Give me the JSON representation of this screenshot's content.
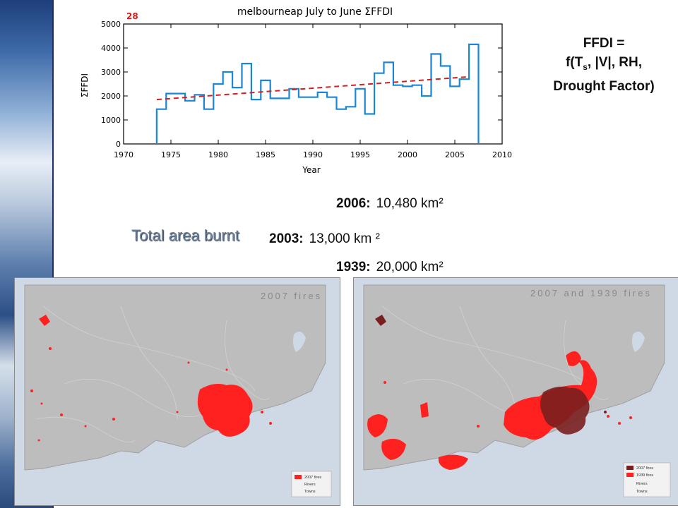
{
  "chart_data": {
    "type": "line",
    "title": "melbourneap July to June ΣFFDI",
    "corner_label": "28",
    "xlabel": "Year",
    "ylabel": "ΣFFDI",
    "xlim": [
      1970,
      2010
    ],
    "ylim": [
      0,
      5000
    ],
    "x_ticks": [
      1970,
      1975,
      1980,
      1985,
      1990,
      1995,
      2000,
      2005,
      2010
    ],
    "y_ticks": [
      0,
      1000,
      2000,
      3000,
      4000,
      5000
    ],
    "series": [
      {
        "style": "step",
        "color": "#1a86d6",
        "x": [
          1973.5,
          1974.5,
          1975.5,
          1976.5,
          1977.5,
          1978.5,
          1979.5,
          1980.5,
          1981.5,
          1982.5,
          1983.5,
          1984.5,
          1985.5,
          1986.5,
          1987.5,
          1988.5,
          1989.5,
          1990.5,
          1991.5,
          1992.5,
          1993.5,
          1994.5,
          1995.5,
          1996.5,
          1997.5,
          1998.5,
          1999.5,
          2000.5,
          2001.5,
          2002.5,
          2003.5,
          2004.5,
          2005.5,
          2006.5
        ],
        "values": [
          1450,
          2100,
          2100,
          1800,
          2050,
          1450,
          2500,
          3000,
          2350,
          3350,
          1850,
          2650,
          1900,
          1900,
          2300,
          1950,
          1950,
          2150,
          1950,
          1450,
          1550,
          2300,
          1250,
          2950,
          3400,
          2450,
          2400,
          2450,
          2000,
          3750,
          3250,
          2400,
          2700,
          4150
        ]
      },
      {
        "style": "dashed-trend",
        "color": "#d42020",
        "x": [
          1973.5,
          2006.5
        ],
        "values": [
          1850,
          2800
        ]
      }
    ]
  },
  "formula": {
    "line1": "FFDI =",
    "line2_a": "f(T",
    "line2_sub": "s",
    "line2_b": ", |V|, RH,",
    "line3": "Drought Factor)"
  },
  "stats": {
    "label": "Total area burnt",
    "items": [
      {
        "year": "2006:",
        "value": "10,480 km²"
      },
      {
        "year": "2003:",
        "value": "13,000 km ²"
      },
      {
        "year": "1939:",
        "value": "20,000 km²"
      }
    ]
  },
  "maps": [
    {
      "title": "2007 fires",
      "legend": [
        "2007 fires",
        "Rivers",
        "Towns"
      ]
    },
    {
      "title": "2007 and 1939 fires",
      "legend": [
        "2007 fires",
        "1939 fires",
        "Rivers",
        "Towns"
      ]
    }
  ],
  "colors": {
    "fire_2007_left": "#ff2020",
    "fire_2007_right": "#7a1f1f",
    "fire_1939": "#ff2020",
    "land": "#bdbdbd",
    "sea": "#cfd9e6"
  }
}
